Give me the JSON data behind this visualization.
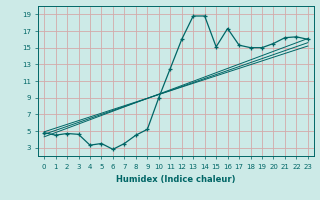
{
  "xlabel": "Humidex (Indice chaleur)",
  "bg_color": "#cceae7",
  "grid_color": "#d4aaaa",
  "line_color": "#006666",
  "xlim": [
    -0.5,
    23.5
  ],
  "ylim": [
    2.0,
    20.0
  ],
  "x_ticks": [
    0,
    1,
    2,
    3,
    4,
    5,
    6,
    7,
    8,
    9,
    10,
    11,
    12,
    13,
    14,
    15,
    16,
    17,
    18,
    19,
    20,
    21,
    22,
    23
  ],
  "y_ticks": [
    3,
    5,
    7,
    9,
    11,
    13,
    15,
    17,
    19
  ],
  "main_x": [
    0,
    1,
    2,
    3,
    4,
    5,
    6,
    7,
    8,
    9,
    10,
    11,
    12,
    13,
    14,
    15,
    16,
    17,
    18,
    19,
    20,
    21,
    22,
    23
  ],
  "main_y": [
    4.8,
    4.5,
    4.7,
    4.6,
    3.3,
    3.5,
    2.8,
    3.5,
    4.5,
    5.2,
    9.0,
    12.5,
    16.0,
    18.8,
    18.8,
    15.1,
    17.3,
    15.3,
    15.0,
    15.0,
    15.5,
    16.2,
    16.3,
    16.0
  ],
  "line2_x": [
    0,
    23
  ],
  "line2_y": [
    4.6,
    15.6
  ],
  "line3_x": [
    0,
    23
  ],
  "line3_y": [
    4.3,
    16.1
  ],
  "line4_x": [
    0,
    23
  ],
  "line4_y": [
    4.9,
    15.2
  ]
}
